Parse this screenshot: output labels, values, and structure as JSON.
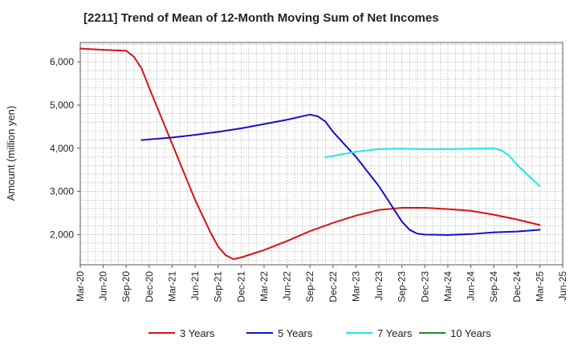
{
  "chart_data": {
    "type": "line",
    "title": "[2211]  Trend of Mean of 12-Month Moving Sum of Net Incomes",
    "xlabel": "",
    "ylabel": "Amount (million yen)",
    "x_ticks": [
      "Mar-20",
      "Jun-20",
      "Sep-20",
      "Dec-20",
      "Mar-21",
      "Jun-21",
      "Sep-21",
      "Dec-21",
      "Mar-22",
      "Jun-22",
      "Sep-22",
      "Dec-22",
      "Mar-23",
      "Jun-23",
      "Sep-23",
      "Dec-23",
      "Mar-24",
      "Jun-24",
      "Sep-24",
      "Dec-24",
      "Mar-25",
      "Jun-25"
    ],
    "y_ticks": [
      "2,000",
      "3,000",
      "4,000",
      "5,000",
      "6,000"
    ],
    "ylim": [
      1300,
      6450
    ],
    "grid": true,
    "legend_position": "bottom",
    "series": [
      {
        "name": "3 Years",
        "color": "#dd1111",
        "points": [
          [
            "2020-03",
            6310
          ],
          [
            "2020-06",
            6280
          ],
          [
            "2020-09",
            6260
          ],
          [
            "2020-10",
            6120
          ],
          [
            "2020-11",
            5850
          ],
          [
            "2020-12",
            5400
          ],
          [
            "2021-03",
            4100
          ],
          [
            "2021-06",
            2800
          ],
          [
            "2021-08",
            2050
          ],
          [
            "2021-09",
            1720
          ],
          [
            "2021-10",
            1520
          ],
          [
            "2021-11",
            1430
          ],
          [
            "2021-12",
            1470
          ],
          [
            "2022-03",
            1640
          ],
          [
            "2022-06",
            1850
          ],
          [
            "2022-09",
            2080
          ],
          [
            "2022-12",
            2270
          ],
          [
            "2023-03",
            2440
          ],
          [
            "2023-06",
            2570
          ],
          [
            "2023-09",
            2620
          ],
          [
            "2023-12",
            2620
          ],
          [
            "2024-03",
            2590
          ],
          [
            "2024-06",
            2550
          ],
          [
            "2024-09",
            2460
          ],
          [
            "2024-12",
            2350
          ],
          [
            "2025-03",
            2220
          ]
        ]
      },
      {
        "name": "5 Years",
        "color": "#1111cc",
        "points": [
          [
            "2020-11",
            4190
          ],
          [
            "2021-03",
            4250
          ],
          [
            "2021-06",
            4310
          ],
          [
            "2021-09",
            4380
          ],
          [
            "2021-12",
            4460
          ],
          [
            "2022-03",
            4560
          ],
          [
            "2022-06",
            4660
          ],
          [
            "2022-09",
            4780
          ],
          [
            "2022-10",
            4740
          ],
          [
            "2022-11",
            4620
          ],
          [
            "2022-12",
            4380
          ],
          [
            "2023-03",
            3800
          ],
          [
            "2023-06",
            3120
          ],
          [
            "2023-09",
            2300
          ],
          [
            "2023-10",
            2110
          ],
          [
            "2023-11",
            2020
          ],
          [
            "2023-12",
            2000
          ],
          [
            "2024-03",
            1990
          ],
          [
            "2024-06",
            2010
          ],
          [
            "2024-09",
            2050
          ],
          [
            "2024-12",
            2070
          ],
          [
            "2025-03",
            2110
          ]
        ]
      },
      {
        "name": "7 Years",
        "color": "#22e5e5",
        "points": [
          [
            "2022-11",
            3790
          ],
          [
            "2023-03",
            3920
          ],
          [
            "2023-06",
            3980
          ],
          [
            "2023-09",
            3990
          ],
          [
            "2023-12",
            3980
          ],
          [
            "2024-03",
            3980
          ],
          [
            "2024-06",
            3990
          ],
          [
            "2024-09",
            4000
          ],
          [
            "2024-10",
            3950
          ],
          [
            "2024-11",
            3830
          ],
          [
            "2024-12",
            3620
          ],
          [
            "2025-03",
            3120
          ]
        ]
      },
      {
        "name": "10 Years",
        "color": "#228b22",
        "points": []
      }
    ]
  }
}
